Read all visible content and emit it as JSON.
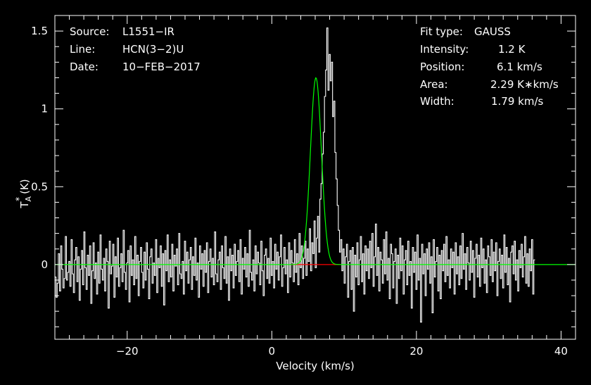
{
  "chart_data": {
    "type": "line",
    "xlabel": "Velocity (km/s)",
    "ylabel": "(K)",
    "ylabel_symbol": "T",
    "ylabel_sub": "A",
    "ylabel_sup": "*",
    "xlim": [
      -30,
      42
    ],
    "ylim": [
      -0.48,
      1.6
    ],
    "x_ticks": [
      -20,
      0,
      20,
      40
    ],
    "y_ticks": [
      0,
      0.5,
      1,
      1.5
    ],
    "x_tick_labels": [
      "−20",
      "0",
      "20",
      "40"
    ],
    "y_tick_labels": [
      "0",
      "0.5",
      "1",
      "1.5"
    ],
    "grid": false,
    "colors": {
      "background": "#000000",
      "spectrum": "#ffffff",
      "fit": "#00ff00",
      "baseline": "#ff0000",
      "frame": "#ffffff"
    },
    "info_left": [
      {
        "label": "Source:",
        "value": "L1551−IR"
      },
      {
        "label": "Line:",
        "value": "HCN(3−2)U"
      },
      {
        "label": "Date:",
        "value": "10−FEB−2017"
      }
    ],
    "info_right": [
      {
        "label": "Fit type:",
        "value": "GAUSS"
      },
      {
        "label": "Intensity:",
        "value": "1.2 K"
      },
      {
        "label": "Position:",
        "value": "6.1 km/s"
      },
      {
        "label": "Area:",
        "value": "2.29 K∗km/s"
      },
      {
        "label": "Width:",
        "value": "1.79 km/s"
      }
    ],
    "fit": {
      "name": "GAUSS",
      "amplitude": 1.2,
      "center": 6.1,
      "fwhm": 1.79
    },
    "baseline_segment": {
      "x": [
        2.6,
        9.6
      ],
      "y": 0
    },
    "spectrum": {
      "x_start": -30,
      "x_step": 0.16,
      "y": [
        -0.08,
        -0.21,
        -0.12,
        0.07,
        -0.17,
        0.12,
        -0.03,
        -0.15,
        -0.09,
        0.18,
        -0.1,
        -0.05,
        0.02,
        -0.14,
        0.16,
        -0.06,
        -0.18,
        0.03,
        0.11,
        -0.11,
        0.05,
        -0.23,
        -0.03,
        0.09,
        -0.13,
        0.21,
        -0.02,
        -0.16,
        0.06,
        -0.07,
        0.12,
        -0.25,
        -0.04,
        0.14,
        -0.09,
        0.01,
        -0.19,
        0.08,
        -0.12,
        0.19,
        -0.03,
        -0.1,
        0.04,
        -0.17,
        0.1,
        0.02,
        -0.28,
        0.15,
        -0.06,
        -0.01,
        0.13,
        -0.21,
        0.05,
        -0.08,
        0.17,
        -0.14,
        -0.02,
        0.07,
        -0.11,
        0.22,
        -0.05,
        -0.16,
        0.01,
        0.09,
        -0.24,
        0.12,
        -0.07,
        0.03,
        -0.13,
        0.18,
        -0.09,
        0.06,
        -0.2,
        0.02,
        0.11,
        -0.05,
        -0.15,
        0.08,
        -0.1,
        0.14,
        -0.03,
        -0.22,
        0.05,
        0.1,
        -0.12,
        0.01,
        -0.07,
        0.16,
        -0.18,
        0.04,
        -0.02,
        0.12,
        -0.14,
        0.07,
        -0.26,
        0.09,
        -0.04,
        0.19,
        -0.11,
        0.03,
        -0.08,
        0.13,
        -0.17,
        0.06,
        -0.01,
        0.1,
        -0.13,
        0.2,
        -0.06,
        -0.09,
        0.02,
        -0.19,
        0.15,
        -0.04,
        0.08,
        -0.12,
        0.03,
        0.11,
        -0.16,
        0.05,
        -0.07,
        0.17,
        -0.1,
        0.01,
        -0.21,
        0.12,
        -0.03,
        0.07,
        -0.14,
        0.09,
        -0.05,
        0.14,
        -0.18,
        0.02,
        0.1,
        -0.08,
        0.04,
        -0.13,
        0.21,
        -0.06,
        -0.11,
        0.03,
        0.08,
        -0.16,
        0.12,
        -0.02,
        -0.09,
        0.18,
        -0.12,
        0.05,
        -0.23,
        0.1,
        -0.04,
        0.06,
        -0.15,
        0.13,
        -0.07,
        0.02,
        0.09,
        -0.11,
        0.16,
        -0.19,
        0.04,
        -0.03,
        0.11,
        -0.08,
        0.07,
        -0.14,
        0.22,
        -0.05,
        -0.1,
        0.03,
        -0.17,
        0.12,
        -0.06,
        0.08,
        0.01,
        -0.13,
        0.15,
        -0.04,
        -0.2,
        0.06,
        0.1,
        -0.09,
        0.04,
        -0.12,
        0.17,
        -0.07,
        0.02,
        -0.15,
        0.13,
        -0.03,
        0.08,
        -0.1,
        0.05,
        0.19,
        -0.14,
        -0.02,
        0.11,
        -0.06,
        0.03,
        -0.18,
        0.14,
        -0.08,
        0.09,
        0.01,
        -0.11,
        0.16,
        -0.05,
        0.07,
        -0.13,
        0.2,
        -0.02,
        0.12,
        -0.09,
        0.04,
        0.15,
        -0.07,
        0.1,
        0.02,
        0.23,
        -0.04,
        0.14,
        0.07,
        0.28,
        -0.02,
        0.17,
        0.31,
        0.08,
        0.42,
        0.52,
        0.71,
        0.85,
        1.08,
        1.25,
        1.52,
        1.12,
        1.35,
        1.18,
        1.3,
        0.95,
        1.05,
        0.72,
        0.55,
        0.38,
        0.22,
        0.08,
        0.16,
        -0.04,
        0.1,
        -0.12,
        0.05,
        0.13,
        -0.21,
        0.02,
        0.09,
        -0.16,
        0.11,
        -0.3,
        0.06,
        -0.08,
        0.14,
        -0.13,
        0.03,
        0.18,
        -0.11,
        0.07,
        -0.19,
        0.12,
        -0.04,
        0.1,
        -0.09,
        0.15,
        -0.02,
        0.2,
        -0.14,
        0.05,
        0.26,
        -0.07,
        0.11,
        -0.17,
        0.08,
        0.03,
        -0.12,
        0.16,
        -0.06,
        0.21,
        -0.1,
        0.04,
        -0.22,
        0.13,
        0.07,
        -0.15,
        0.02,
        0.1,
        -0.25,
        0.06,
        -0.09,
        0.17,
        -0.04,
        0.12,
        -0.19,
        0.03,
        0.09,
        -0.13,
        0.15,
        -0.07,
        0.02,
        -0.28,
        0.11,
        -0.05,
        0.08,
        -0.16,
        0.19,
        -0.1,
        0.04,
        -0.37,
        0.13,
        -0.06,
        0.07,
        -0.2,
        0.1,
        -0.03,
        0.14,
        -0.12,
        0.05,
        -0.31,
        0.16,
        -0.08,
        0.02,
        0.11,
        -0.17,
        0.06,
        -0.22,
        0.09,
        -0.04,
        0.13,
        -0.11,
        0.18,
        -0.07,
        0.03,
        -0.15,
        0.1,
        -0.02,
        0.08,
        -0.19,
        0.14,
        -0.06,
        0.05,
        -0.13,
        0.12,
        -0.09,
        0.2,
        -0.03,
        0.07,
        -0.16,
        0.11,
        0.01,
        -0.1,
        0.15,
        -0.05,
        0.09,
        -0.21,
        0.04,
        0.13,
        -0.08,
        0.06,
        -0.14,
        0.17,
        -0.02,
        0.1,
        -0.12,
        0.03,
        -0.18,
        0.12,
        0.05,
        -0.07,
        0.16,
        -0.11,
        0.08,
        -0.04,
        0.14,
        -0.2,
        0.02,
        0.1,
        -0.09,
        0.06,
        -0.15,
        0.19,
        -0.05,
        0.11,
        -0.13,
        0.04,
        -0.24,
        0.08,
        0.12,
        -0.06,
        0.15,
        -0.1,
        0.03,
        -0.17,
        0.09,
        -0.02,
        0.13,
        -0.08,
        0.05,
        0.18,
        -0.12,
        0.07,
        -0.14,
        0.1,
        -0.04,
        0.16,
        -0.19,
        0.03
      ]
    }
  }
}
